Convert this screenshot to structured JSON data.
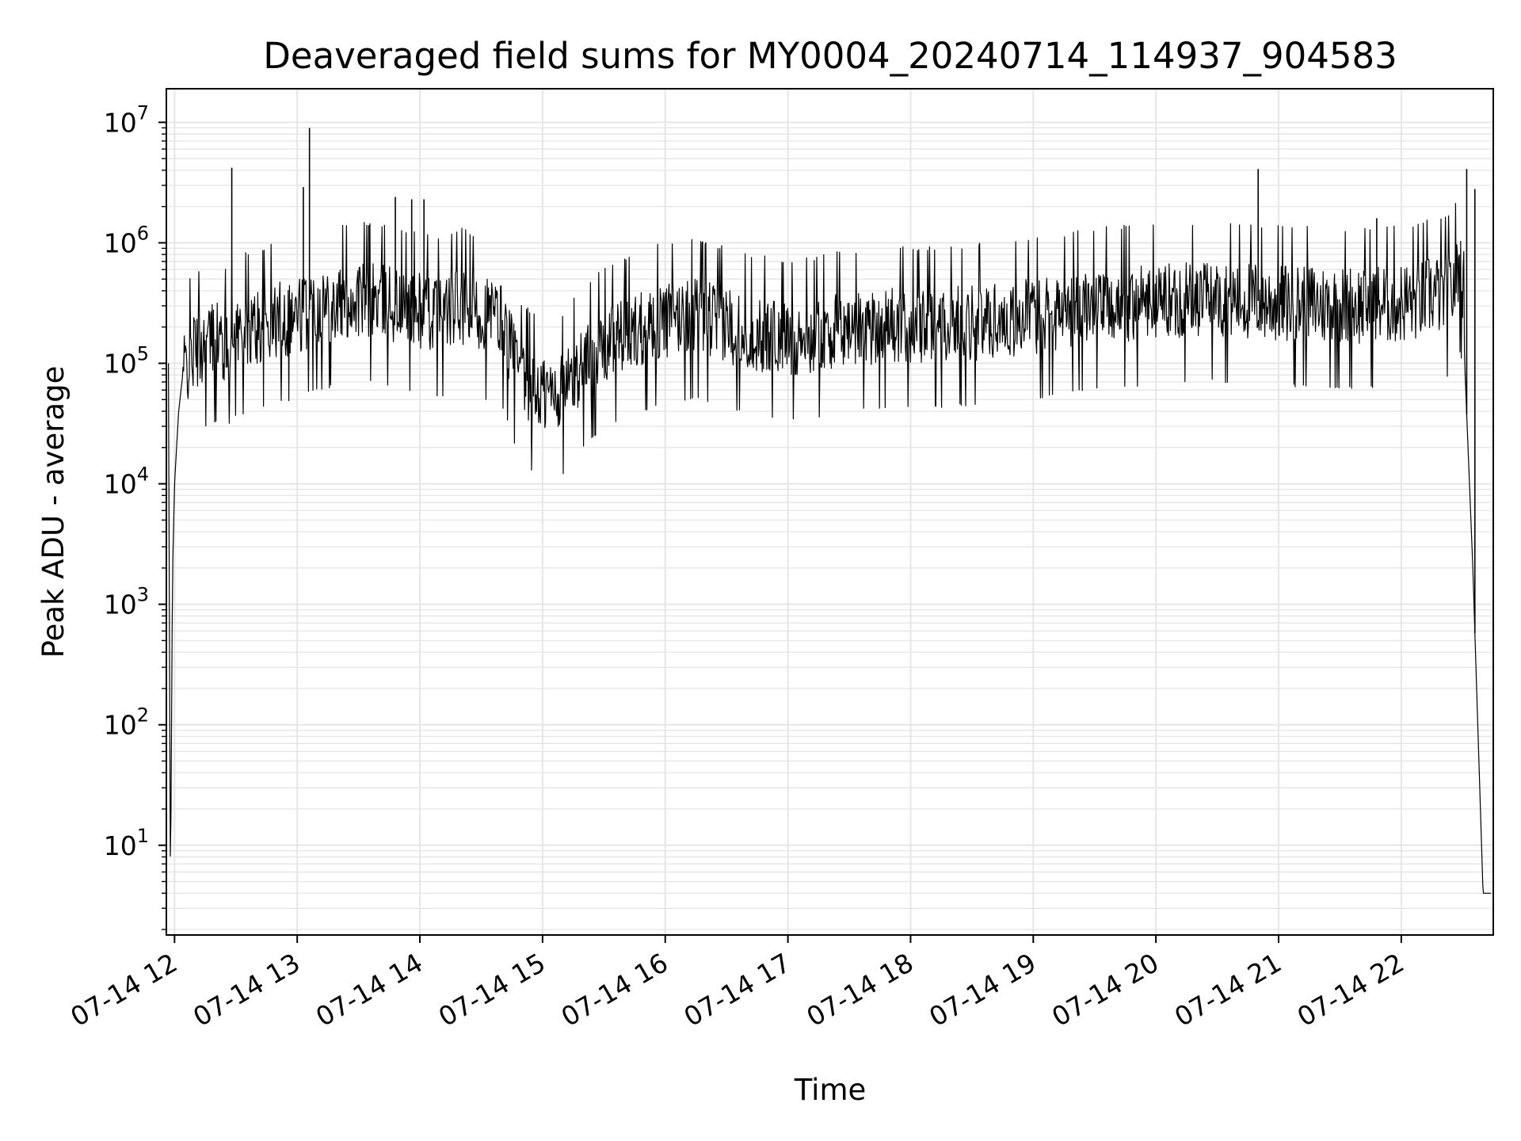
{
  "chart_data": {
    "type": "line",
    "title": "Deaveraged field sums for MY0004_20240714_114937_904583",
    "xlabel": "Time",
    "ylabel": "Peak ADU - average",
    "yscale": "log",
    "xlim": [
      "2024-07-14 11:56",
      "2024-07-14 22:45"
    ],
    "ylim": [
      1.8,
      19000000
    ],
    "grid": true,
    "line_color": "#000000",
    "grid_color": "#e6e6e6",
    "x_ticks": [
      "07-14 12",
      "07-14 13",
      "07-14 14",
      "07-14 15",
      "07-14 16",
      "07-14 17",
      "07-14 18",
      "07-14 19",
      "07-14 20",
      "07-14 21",
      "07-14 22"
    ],
    "y_ticks": [
      {
        "base": "10",
        "exp": "1"
      },
      {
        "base": "10",
        "exp": "2"
      },
      {
        "base": "10",
        "exp": "3"
      },
      {
        "base": "10",
        "exp": "4"
      },
      {
        "base": "10",
        "exp": "5"
      },
      {
        "base": "10",
        "exp": "6"
      },
      {
        "base": "10",
        "exp": "7"
      }
    ],
    "series": [
      {
        "x": [
          "2024-07-14 11:57",
          "2024-07-14 11:58",
          "2024-07-14 11:59",
          "2024-07-14 12:00",
          "2024-07-14 12:02",
          "2024-07-14 12:04",
          "2024-07-14 12:07",
          "2024-07-14 12:10",
          "2024-07-14 12:15",
          "2024-07-14 12:20",
          "2024-07-14 12:25",
          "2024-07-14 12:30",
          "2024-07-14 12:40",
          "2024-07-14 12:50",
          "2024-07-14 13:00",
          "2024-07-14 13:10",
          "2024-07-14 13:20",
          "2024-07-14 13:30",
          "2024-07-14 13:40",
          "2024-07-14 13:50",
          "2024-07-14 14:00",
          "2024-07-14 14:10",
          "2024-07-14 14:20",
          "2024-07-14 14:30",
          "2024-07-14 14:40",
          "2024-07-14 14:50",
          "2024-07-14 15:00",
          "2024-07-14 15:10",
          "2024-07-14 15:20",
          "2024-07-14 15:30",
          "2024-07-14 15:45",
          "2024-07-14 16:00",
          "2024-07-14 16:15",
          "2024-07-14 16:30",
          "2024-07-14 16:45",
          "2024-07-14 17:00",
          "2024-07-14 17:30",
          "2024-07-14 18:00",
          "2024-07-14 18:30",
          "2024-07-14 19:00",
          "2024-07-14 19:30",
          "2024-07-14 20:00",
          "2024-07-14 20:30",
          "2024-07-14 21:00",
          "2024-07-14 21:30",
          "2024-07-14 22:00",
          "2024-07-14 22:10",
          "2024-07-14 22:15",
          "2024-07-14 22:20",
          "2024-07-14 22:25",
          "2024-07-14 22:28",
          "2024-07-14 22:30",
          "2024-07-14 22:31",
          "2024-07-14 22:35",
          "2024-07-14 22:40",
          "2024-07-14 22:44"
        ],
        "y": [
          100000,
          4,
          1800,
          10000,
          40000,
          80000,
          110000,
          130000,
          150000,
          160000,
          140000,
          180000,
          200000,
          230000,
          250000,
          300000,
          320000,
          350000,
          330000,
          300000,
          280000,
          260000,
          300000,
          260000,
          220000,
          70000,
          55000,
          60000,
          100000,
          140000,
          190000,
          230000,
          250000,
          210000,
          180000,
          160000,
          200000,
          210000,
          220000,
          250000,
          300000,
          330000,
          350000,
          320000,
          300000,
          320000,
          340000,
          380000,
          370000,
          400000,
          650000,
          500000,
          100000,
          2000,
          4,
          4
        ]
      }
    ],
    "spikes": [
      {
        "x": "2024-07-14 12:28",
        "y": 4200000
      },
      {
        "x": "2024-07-14 13:03",
        "y": 2900000
      },
      {
        "x": "2024-07-14 13:06",
        "y": 9000000
      },
      {
        "x": "2024-07-14 13:35",
        "y": 1400000
      },
      {
        "x": "2024-07-14 13:48",
        "y": 2400000
      },
      {
        "x": "2024-07-14 13:56",
        "y": 2300000
      },
      {
        "x": "2024-07-14 14:02",
        "y": 2300000
      },
      {
        "x": "2024-07-14 20:50",
        "y": 4100000
      },
      {
        "x": "2024-07-14 21:48",
        "y": 1600000
      },
      {
        "x": "2024-07-14 22:32",
        "y": 4100000
      },
      {
        "x": "2024-07-14 22:36",
        "y": 2800000
      }
    ]
  }
}
